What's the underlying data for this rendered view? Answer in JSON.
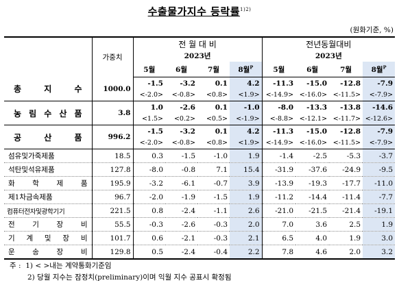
{
  "title": "수출물가지수 등락률",
  "title_note_mark": "1)2)",
  "unit": "(원화기준, %)",
  "header": {
    "weight": "가중치",
    "group_mom": "전 월 대 비",
    "group_yoy": "전년동월대비",
    "year": "2023년",
    "months": [
      "5월",
      "6월",
      "7월",
      "8월"
    ],
    "prelim_mark": "P"
  },
  "rows": [
    {
      "label": "총 지 수",
      "weight": "1000.0",
      "mom": [
        "-1.5",
        "-3.2",
        "0.1",
        "4.2"
      ],
      "yoy": [
        "-11.3",
        "-15.0",
        "-12.8",
        "-7.9"
      ],
      "mom_sub": [
        "<-2.0>",
        "<-0.8>",
        "<0.8>",
        "<1.9>"
      ],
      "yoy_sub": [
        "<-14.9>",
        "<-16.0>",
        "<-11.5>",
        "<-7.9>"
      ]
    },
    {
      "label": "농 림 수 산 품",
      "weight": "3.8",
      "mom": [
        "1.0",
        "-2.6",
        "0.1",
        "-1.0"
      ],
      "yoy": [
        "-8.0",
        "-13.3",
        "-13.8",
        "-14.6"
      ],
      "mom_sub": [
        "<1.5>",
        "<0.2>",
        "<0.5>",
        "<-1.9>"
      ],
      "yoy_sub": [
        "<-8.8>",
        "<-12.1>",
        "<-11.7>",
        "<-12.6>"
      ]
    },
    {
      "label": "공 산 품",
      "weight": "996.2",
      "mom": [
        "-1.5",
        "-3.2",
        "0.1",
        "4.2"
      ],
      "yoy": [
        "-11.3",
        "-15.0",
        "-12.8",
        "-7.9"
      ],
      "mom_sub": [
        "<-2.0>",
        "<-0.8>",
        "<0.8>",
        "<1.9>"
      ],
      "yoy_sub": [
        "<-14.9>",
        "<-16.0>",
        "<-11.5>",
        "<-7.9>"
      ]
    }
  ],
  "sub_rows": [
    {
      "label": "섬유및가죽제품",
      "weight": "18.5",
      "mom": [
        "0.3",
        "-1.5",
        "-1.0",
        "1.9"
      ],
      "yoy": [
        "-1.4",
        "-2.5",
        "-5.3",
        "-3.7"
      ]
    },
    {
      "label": "석탄및석유제품",
      "weight": "127.8",
      "mom": [
        "-8.0",
        "-0.8",
        "7.1",
        "15.4"
      ],
      "yoy": [
        "-31.9",
        "-37.6",
        "-24.9",
        "-9.5"
      ]
    },
    {
      "label": "화 학 제 품",
      "weight": "195.9",
      "mom": [
        "-3.2",
        "-6.1",
        "-0.7",
        "3.9"
      ],
      "yoy": [
        "-13.9",
        "-19.3",
        "-17.7",
        "-11.0"
      ]
    },
    {
      "label": "제1차금속제품",
      "weight": "96.7",
      "mom": [
        "-2.0",
        "-1.9",
        "-1.5",
        "1.9"
      ],
      "yoy": [
        "-11.2",
        "-14.4",
        "-11.4",
        "-7.7"
      ]
    },
    {
      "label": "컴퓨터전자및광학기기",
      "weight": "221.5",
      "mom": [
        "0.8",
        "-2.4",
        "-1.1",
        "2.6"
      ],
      "yoy": [
        "-21.0",
        "-21.5",
        "-21.4",
        "-19.1"
      ],
      "tight": true
    },
    {
      "label": "전 기 장 비",
      "weight": "55.5",
      "mom": [
        "-0.3",
        "-2.6",
        "-0.3",
        "2.0"
      ],
      "yoy": [
        "7.0",
        "3.6",
        "2.5",
        "1.9"
      ]
    },
    {
      "label": "기 계 및 장 비",
      "weight": "101.7",
      "mom": [
        "0.6",
        "-2.1",
        "-0.3",
        "2.1"
      ],
      "yoy": [
        "6.5",
        "4.0",
        "1.9",
        "3.0"
      ]
    },
    {
      "label": "운 송 장 비",
      "weight": "129.8",
      "mom": [
        "0.5",
        "-2.4",
        "-0.4",
        "2.2"
      ],
      "yoy": [
        "7.8",
        "4.6",
        "2.0",
        "3.2"
      ]
    }
  ],
  "notes": {
    "prefix": "주 :",
    "note1": "1) < >내는 계약통화기준임",
    "note2": "2) 당월 지수는 잠정치(preliminary)이며 익월 지수 공표시 확정됨"
  }
}
